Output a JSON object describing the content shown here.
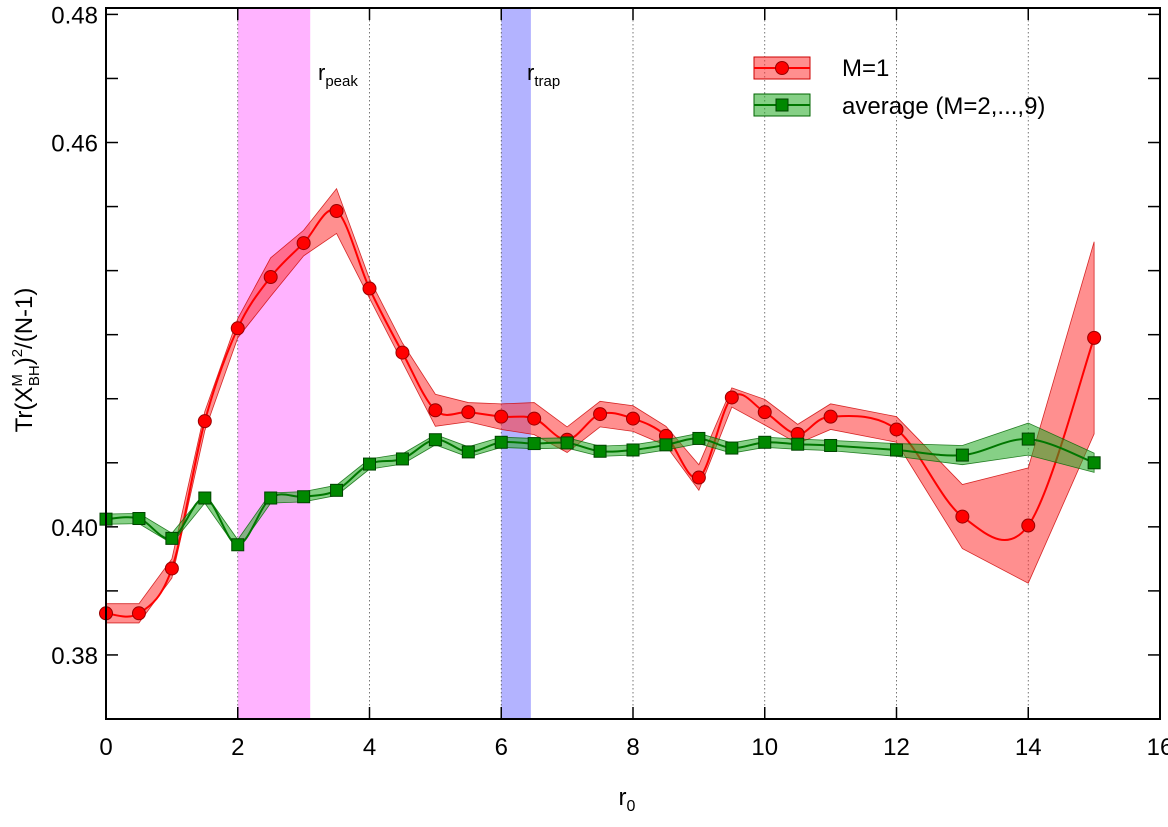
{
  "chart_data": {
    "type": "line",
    "xlabel": "r",
    "xlabel_sub": "0",
    "ylabel_parts": {
      "pre": "Tr(X",
      "sub": "BH",
      "sup": "M",
      "post": ")",
      "sup2": "2",
      "post2": "/(N-1)"
    },
    "xlim": [
      0,
      16
    ],
    "ylim": [
      0.37,
      0.481
    ],
    "xticks": [
      0,
      2,
      4,
      6,
      8,
      10,
      12,
      14,
      16
    ],
    "yticks": [
      0.38,
      0.39,
      0.4,
      0.41,
      0.42,
      0.43,
      0.44,
      0.45,
      0.46,
      0.47,
      0.48
    ],
    "yticklabels": [
      "0.38",
      "",
      "0.40",
      "",
      "",
      "",
      "",
      "",
      "0.46",
      "",
      "0.48"
    ],
    "grid": "vertical dotted at even x",
    "legend_position": "top-right",
    "bands": [
      {
        "name": "r_peak",
        "label": "r",
        "label_sub": "peak",
        "x_range": [
          2.0,
          3.1
        ],
        "color": "#ff99ff"
      },
      {
        "name": "r_trap",
        "label": "r",
        "label_sub": "trap",
        "x_range": [
          6.0,
          6.45
        ],
        "color": "#9999ff"
      }
    ],
    "series": [
      {
        "name": "M=1",
        "color": "#ff0000",
        "band_color": "#ff3333",
        "marker": "circle",
        "x": [
          0,
          0.5,
          1.0,
          1.5,
          2.0,
          2.5,
          3.0,
          3.5,
          4.0,
          4.5,
          5.0,
          5.5,
          6.0,
          6.5,
          7.0,
          7.5,
          8.0,
          8.5,
          9.0,
          9.5,
          10.0,
          10.5,
          11.0,
          12.0,
          13.0,
          14.0,
          15.0
        ],
        "y": [
          0.3865,
          0.3865,
          0.3935,
          0.4165,
          0.431,
          0.439,
          0.4443,
          0.4493,
          0.4372,
          0.4272,
          0.4182,
          0.4179,
          0.4172,
          0.4169,
          0.4136,
          0.4176,
          0.4169,
          0.4142,
          0.4077,
          0.4202,
          0.4179,
          0.4145,
          0.4172,
          0.4152,
          0.4016,
          0.4002,
          0.4295
        ],
        "err": [
          0.0015,
          0.0015,
          0.0015,
          0.0015,
          0.0015,
          0.003,
          0.002,
          0.0035,
          0.0015,
          0.0015,
          0.0025,
          0.0015,
          0.002,
          0.0025,
          0.002,
          0.002,
          0.002,
          0.0015,
          0.002,
          0.0015,
          0.002,
          0.0015,
          0.002,
          0.002,
          0.005,
          0.009,
          0.015
        ]
      },
      {
        "name": "average (M=2,...,9)",
        "color": "#007700",
        "band_color": "#22aa22",
        "marker": "square",
        "x": [
          0,
          0.5,
          1.0,
          1.5,
          2.0,
          2.5,
          3.0,
          3.5,
          4.0,
          4.5,
          5.0,
          5.5,
          6.0,
          6.5,
          7.0,
          7.5,
          8.0,
          8.5,
          9.0,
          9.5,
          10.0,
          10.5,
          11.0,
          12.0,
          13.0,
          14.0,
          15.0
        ],
        "y": [
          0.4012,
          0.4013,
          0.3982,
          0.4045,
          0.3972,
          0.4045,
          0.4047,
          0.4057,
          0.4098,
          0.4106,
          0.4136,
          0.4117,
          0.4132,
          0.413,
          0.4131,
          0.4118,
          0.412,
          0.4128,
          0.4138,
          0.4123,
          0.4132,
          0.4129,
          0.4127,
          0.412,
          0.4112,
          0.4137,
          0.41
        ],
        "err": [
          0.0008,
          0.0008,
          0.0008,
          0.0008,
          0.0008,
          0.0008,
          0.0008,
          0.0008,
          0.0008,
          0.0008,
          0.0008,
          0.0008,
          0.0008,
          0.0008,
          0.0008,
          0.0008,
          0.0008,
          0.0008,
          0.0008,
          0.0008,
          0.0008,
          0.0008,
          0.0008,
          0.001,
          0.0015,
          0.0025,
          0.0015
        ]
      }
    ]
  }
}
